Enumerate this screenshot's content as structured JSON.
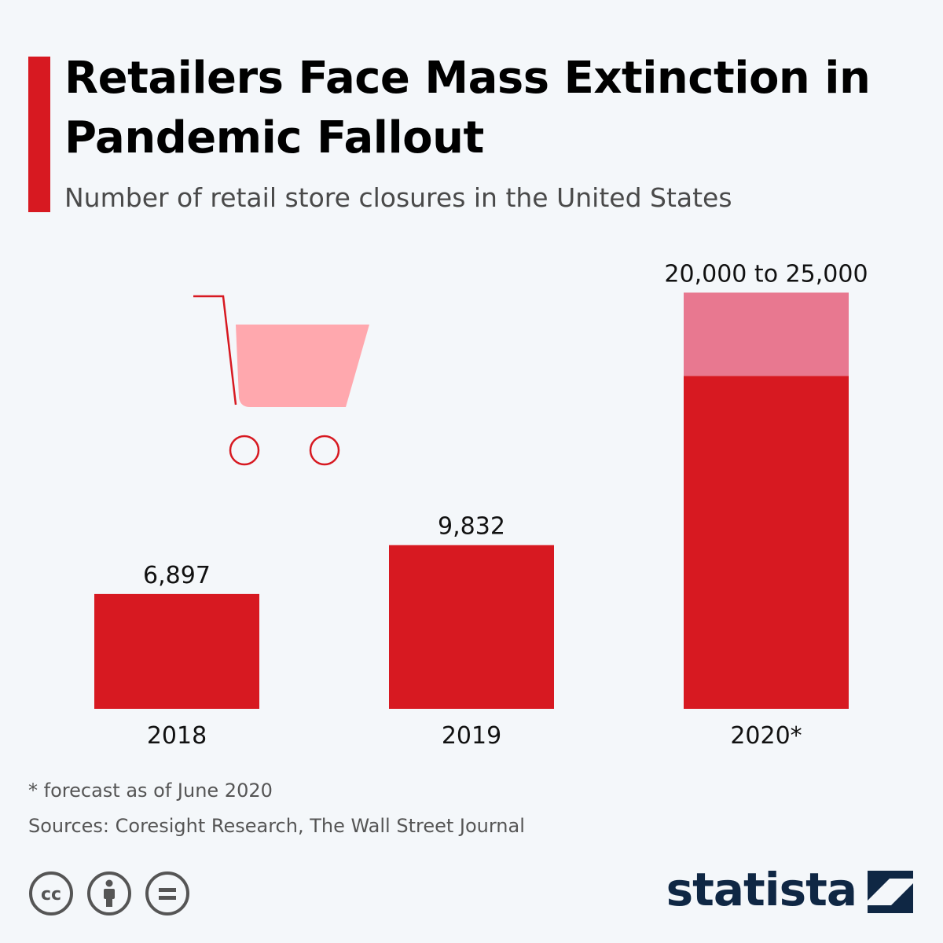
{
  "header": {
    "title": "Retailers Face Mass Extinction in Pandemic Fallout",
    "subtitle": "Number of retail store closures in the United States"
  },
  "chart_data": {
    "type": "bar",
    "title": "Retailers Face Mass Extinction in Pandemic Fallout",
    "subtitle": "Number of retail store closures in the United States",
    "categories": [
      "2018",
      "2019",
      "2020*"
    ],
    "values": [
      6897,
      9832,
      20000
    ],
    "range_high": [
      null,
      null,
      25000
    ],
    "value_labels": [
      "6,897",
      "9,832",
      "20,000 to 25,000"
    ],
    "ylim": [
      0,
      27000
    ],
    "grid": false,
    "colors": {
      "bar": "#d71921",
      "range": "#e87890"
    }
  },
  "footer": {
    "footnote": "* forecast as of June 2020",
    "sources": "Sources: Coresight Research, The Wall Street Journal",
    "brand": "statista",
    "icons": [
      "cc-icon",
      "by-attribution-icon",
      "nd-equals-icon"
    ]
  },
  "decoration": {
    "illustration": "shopping-cart-icon"
  }
}
